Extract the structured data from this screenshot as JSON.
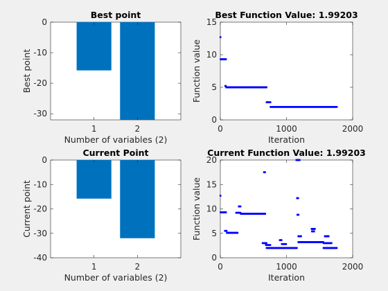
{
  "chart_data": [
    {
      "type": "bar",
      "title": "Best point",
      "xlabel": "Number of variables (2)",
      "ylabel": "Best point",
      "categories": [
        "1",
        "2"
      ],
      "values": [
        -15.8,
        -32
      ],
      "ylim": [
        -32,
        0
      ],
      "yticks": [
        0,
        -10,
        -20,
        -30
      ],
      "color": "#0072bd"
    },
    {
      "type": "scatter",
      "title": "Best Function Value: 1.99203",
      "xlabel": "Iteration",
      "ylabel": "Function value",
      "xlim": [
        0,
        2000
      ],
      "ylim": [
        0,
        15
      ],
      "xticks": [
        0,
        1000,
        2000
      ],
      "yticks": [
        0,
        5,
        10,
        15
      ],
      "color": "#0000ff",
      "segments": [
        {
          "x": [
            2,
            2
          ],
          "y": 12.7
        },
        {
          "x": [
            5,
            90
          ],
          "y": 9.3
        },
        {
          "x": [
            75,
            90
          ],
          "y": 5.2
        },
        {
          "x": [
            90,
            700
          ],
          "y": 5.0
        },
        {
          "x": [
            700,
            760
          ],
          "y": 2.7
        },
        {
          "x": [
            760,
            1760
          ],
          "y": 1.99
        }
      ]
    },
    {
      "type": "bar",
      "title": "Current Point",
      "xlabel": "Number of variables (2)",
      "ylabel": "Current point",
      "categories": [
        "1",
        "2"
      ],
      "values": [
        -15.8,
        -32
      ],
      "ylim": [
        -40,
        0
      ],
      "yticks": [
        0,
        -10,
        -20,
        -30,
        -40
      ],
      "color": "#0072bd"
    },
    {
      "type": "scatter",
      "title": "Current Function Value: 1.99203",
      "xlabel": "Iteration",
      "ylabel": "Function value",
      "xlim": [
        0,
        2000
      ],
      "ylim": [
        0,
        20
      ],
      "xticks": [
        0,
        1000,
        2000
      ],
      "yticks": [
        0,
        5,
        10,
        15,
        20
      ],
      "color": "#0000ff",
      "segments": [
        {
          "x": [
            2,
            2
          ],
          "y": 12.7
        },
        {
          "x": [
            5,
            90
          ],
          "y": 9.3
        },
        {
          "x": [
            70,
            100
          ],
          "y": 5.5
        },
        {
          "x": [
            100,
            260
          ],
          "y": 5.1
        },
        {
          "x": [
            240,
            310
          ],
          "y": 9.2
        },
        {
          "x": [
            280,
            310
          ],
          "y": 10.5
        },
        {
          "x": [
            310,
            680
          ],
          "y": 9.0
        },
        {
          "x": [
            660,
            680
          ],
          "y": 17.5
        },
        {
          "x": [
            640,
            700
          ],
          "y": 3.0
        },
        {
          "x": [
            690,
            760
          ],
          "y": 2.6
        },
        {
          "x": [
            700,
            940
          ],
          "y": 2.0
        },
        {
          "x": [
            900,
            930
          ],
          "y": 3.6
        },
        {
          "x": [
            930,
            1000
          ],
          "y": 2.8
        },
        {
          "x": [
            940,
            1160
          ],
          "y": 2.0
        },
        {
          "x": [
            1150,
            1200
          ],
          "y": 20.0
        },
        {
          "x": [
            1160,
            1180
          ],
          "y": 12.2
        },
        {
          "x": [
            1165,
            1185
          ],
          "y": 8.8
        },
        {
          "x": [
            1180,
            1220
          ],
          "y": 4.4
        },
        {
          "x": [
            1180,
            1560
          ],
          "y": 3.2
        },
        {
          "x": [
            1380,
            1430
          ],
          "y": 5.9
        },
        {
          "x": [
            1385,
            1420
          ],
          "y": 5.4
        },
        {
          "x": [
            1580,
            1640
          ],
          "y": 4.4
        },
        {
          "x": [
            1560,
            1680
          ],
          "y": 3.0
        },
        {
          "x": [
            1560,
            1760
          ],
          "y": 2.0
        }
      ]
    }
  ]
}
